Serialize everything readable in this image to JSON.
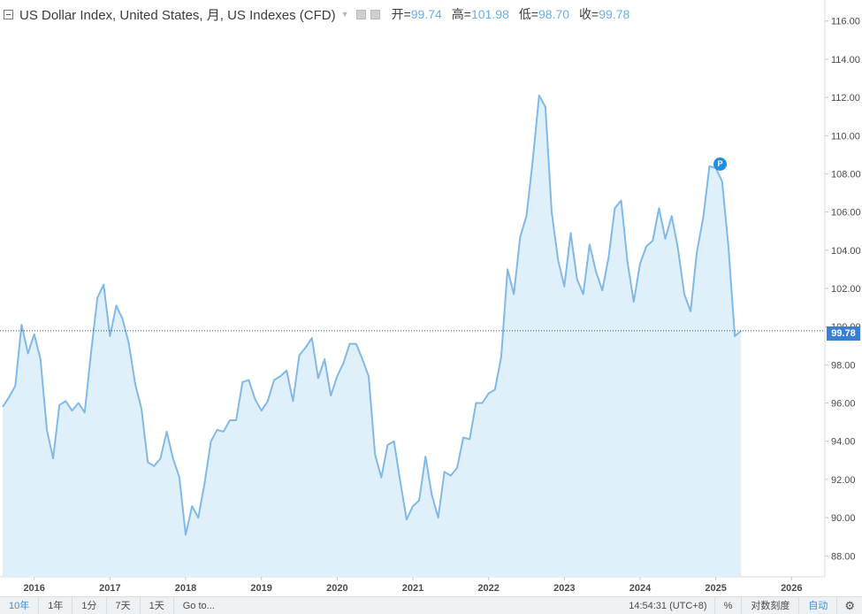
{
  "legend": {
    "title": "US Dollar Index, United States, 月, US Indexes (CFD)",
    "open_label": "开=",
    "open_value": "99.74",
    "high_label": "高=",
    "high_value": "101.98",
    "low_label": "低=",
    "low_value": "98.70",
    "close_label": "收=",
    "close_value": "99.78"
  },
  "last_price": "99.78",
  "marker_label": "P",
  "toolbar": {
    "ranges": [
      "10年",
      "1年",
      "1分",
      "7天",
      "1天"
    ],
    "goto": "Go to...",
    "time": "14:54:31 (UTC+8)",
    "percent": "%",
    "log_scale": "对数刻度",
    "auto": "自动",
    "settings_icon": "gear-icon"
  },
  "chart_data": {
    "type": "area",
    "title": "US Dollar Index, United States, 月, US Indexes (CFD)",
    "xlabel": "",
    "ylabel": "",
    "x_ticks": [
      "2016",
      "2017",
      "2018",
      "2019",
      "2020",
      "2021",
      "2022",
      "2023",
      "2024",
      "2025",
      "2026"
    ],
    "y_ticks": [
      "88.00",
      "90.00",
      "92.00",
      "94.00",
      "96.00",
      "98.00",
      "100.00",
      "102.00",
      "104.00",
      "106.00",
      "108.00",
      "110.00",
      "112.00",
      "114.00",
      "116.00"
    ],
    "xlim": [
      "2015-08",
      "2026-06"
    ],
    "ylim": [
      86.9,
      117.1
    ],
    "last_value": 99.78,
    "colors": {
      "line": "#80b9e8",
      "fill": "#e0f0fa",
      "price_line": "#2c4a6b",
      "price_tag": "#3b7fd4"
    },
    "x": [
      "2015-08",
      "2015-09",
      "2015-10",
      "2015-11",
      "2015-12",
      "2016-01",
      "2016-02",
      "2016-03",
      "2016-04",
      "2016-05",
      "2016-06",
      "2016-07",
      "2016-08",
      "2016-09",
      "2016-10",
      "2016-11",
      "2016-12",
      "2017-01",
      "2017-02",
      "2017-03",
      "2017-04",
      "2017-05",
      "2017-06",
      "2017-07",
      "2017-08",
      "2017-09",
      "2017-10",
      "2017-11",
      "2017-12",
      "2018-01",
      "2018-02",
      "2018-03",
      "2018-04",
      "2018-05",
      "2018-06",
      "2018-07",
      "2018-08",
      "2018-09",
      "2018-10",
      "2018-11",
      "2018-12",
      "2019-01",
      "2019-02",
      "2019-03",
      "2019-04",
      "2019-05",
      "2019-06",
      "2019-07",
      "2019-08",
      "2019-09",
      "2019-10",
      "2019-11",
      "2019-12",
      "2020-01",
      "2020-02",
      "2020-03",
      "2020-04",
      "2020-05",
      "2020-06",
      "2020-07",
      "2020-08",
      "2020-09",
      "2020-10",
      "2020-11",
      "2020-12",
      "2021-01",
      "2021-02",
      "2021-03",
      "2021-04",
      "2021-05",
      "2021-06",
      "2021-07",
      "2021-08",
      "2021-09",
      "2021-10",
      "2021-11",
      "2021-12",
      "2022-01",
      "2022-02",
      "2022-03",
      "2022-04",
      "2022-05",
      "2022-06",
      "2022-07",
      "2022-08",
      "2022-09",
      "2022-10",
      "2022-11",
      "2022-12",
      "2023-01",
      "2023-02",
      "2023-03",
      "2023-04",
      "2023-05",
      "2023-06",
      "2023-07",
      "2023-08",
      "2023-09",
      "2023-10",
      "2023-11",
      "2023-12",
      "2024-01",
      "2024-02",
      "2024-03",
      "2024-04",
      "2024-05",
      "2024-06",
      "2024-07",
      "2024-08",
      "2024-09",
      "2024-10",
      "2024-11",
      "2024-12",
      "2025-01",
      "2025-02",
      "2025-03",
      "2025-04",
      "2025-05"
    ],
    "values": [
      95.8,
      96.3,
      96.9,
      100.1,
      98.6,
      99.6,
      98.3,
      94.6,
      93.1,
      95.9,
      96.1,
      95.6,
      96.0,
      95.5,
      98.6,
      101.5,
      102.2,
      99.5,
      101.1,
      100.4,
      99.1,
      97.0,
      95.7,
      92.9,
      92.7,
      93.1,
      94.5,
      93.1,
      92.1,
      89.1,
      90.6,
      90.0,
      91.8,
      94.0,
      94.6,
      94.5,
      95.1,
      95.1,
      97.1,
      97.2,
      96.2,
      95.6,
      96.1,
      97.2,
      97.4,
      97.7,
      96.1,
      98.5,
      98.9,
      99.4,
      97.3,
      98.3,
      96.4,
      97.4,
      98.1,
      99.1,
      99.1,
      98.3,
      97.4,
      93.3,
      92.1,
      93.8,
      94.0,
      91.9,
      89.9,
      90.6,
      90.9,
      93.2,
      91.2,
      90.0,
      92.4,
      92.2,
      92.6,
      94.2,
      94.1,
      96.0,
      96.0,
      96.5,
      96.7,
      98.4,
      103.0,
      101.7,
      104.7,
      105.8,
      108.7,
      112.1,
      111.5,
      106.0,
      103.5,
      102.1,
      104.9,
      102.5,
      101.7,
      104.3,
      102.9,
      101.9,
      103.6,
      106.2,
      106.6,
      103.4,
      101.3,
      103.3,
      104.2,
      104.5,
      106.2,
      104.6,
      105.8,
      104.1,
      101.7,
      100.8,
      103.9,
      105.7,
      108.4,
      108.3,
      107.6,
      104.2,
      99.5,
      99.78
    ]
  }
}
